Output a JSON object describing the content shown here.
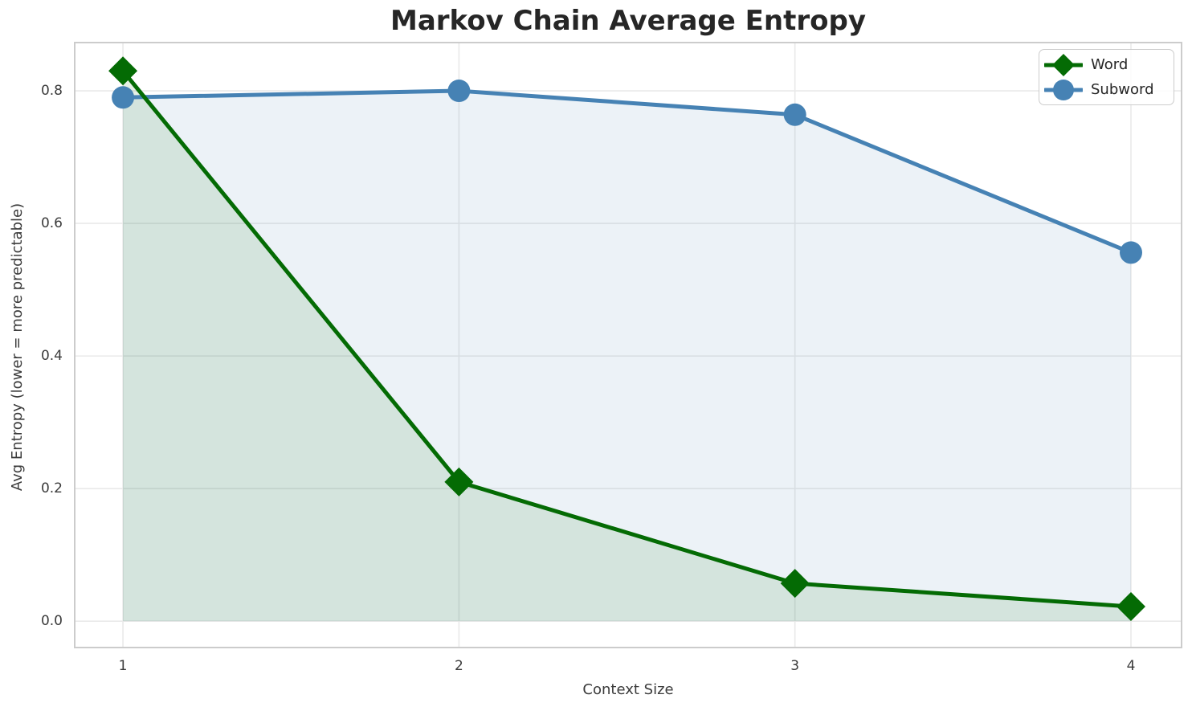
{
  "chart_data": {
    "type": "line",
    "title": "Markov Chain Average Entropy",
    "xlabel": "Context Size",
    "ylabel": "Avg Entropy (lower = more predictable)",
    "x": [
      1,
      2,
      3,
      4
    ],
    "x_tick_labels": [
      "1",
      "2",
      "3",
      "4"
    ],
    "y_tick_values": [
      0.0,
      0.2,
      0.4,
      0.6,
      0.8
    ],
    "y_tick_labels": [
      "0.0",
      "0.2",
      "0.4",
      "0.6",
      "0.8"
    ],
    "xlim": [
      0.854,
      4.153
    ],
    "ylim": [
      -0.041,
      0.874
    ],
    "grid": true,
    "legend_position": "upper right",
    "area_fill_baseline": 0.0,
    "series": [
      {
        "name": "Word",
        "marker": "diamond",
        "color": "#046b04",
        "fill_opacity": 0.1,
        "values": [
          0.83,
          0.21,
          0.057,
          0.022
        ]
      },
      {
        "name": "Subword",
        "marker": "circle",
        "color": "#4682b4",
        "fill_opacity": 0.1,
        "values": [
          0.79,
          0.8,
          0.764,
          0.556
        ]
      }
    ]
  },
  "style_colors": {
    "grid_line": "#e9e9e9",
    "plot_border": "#cccccc",
    "title_text": "#262626",
    "tick_text": "#3b3b3b"
  }
}
